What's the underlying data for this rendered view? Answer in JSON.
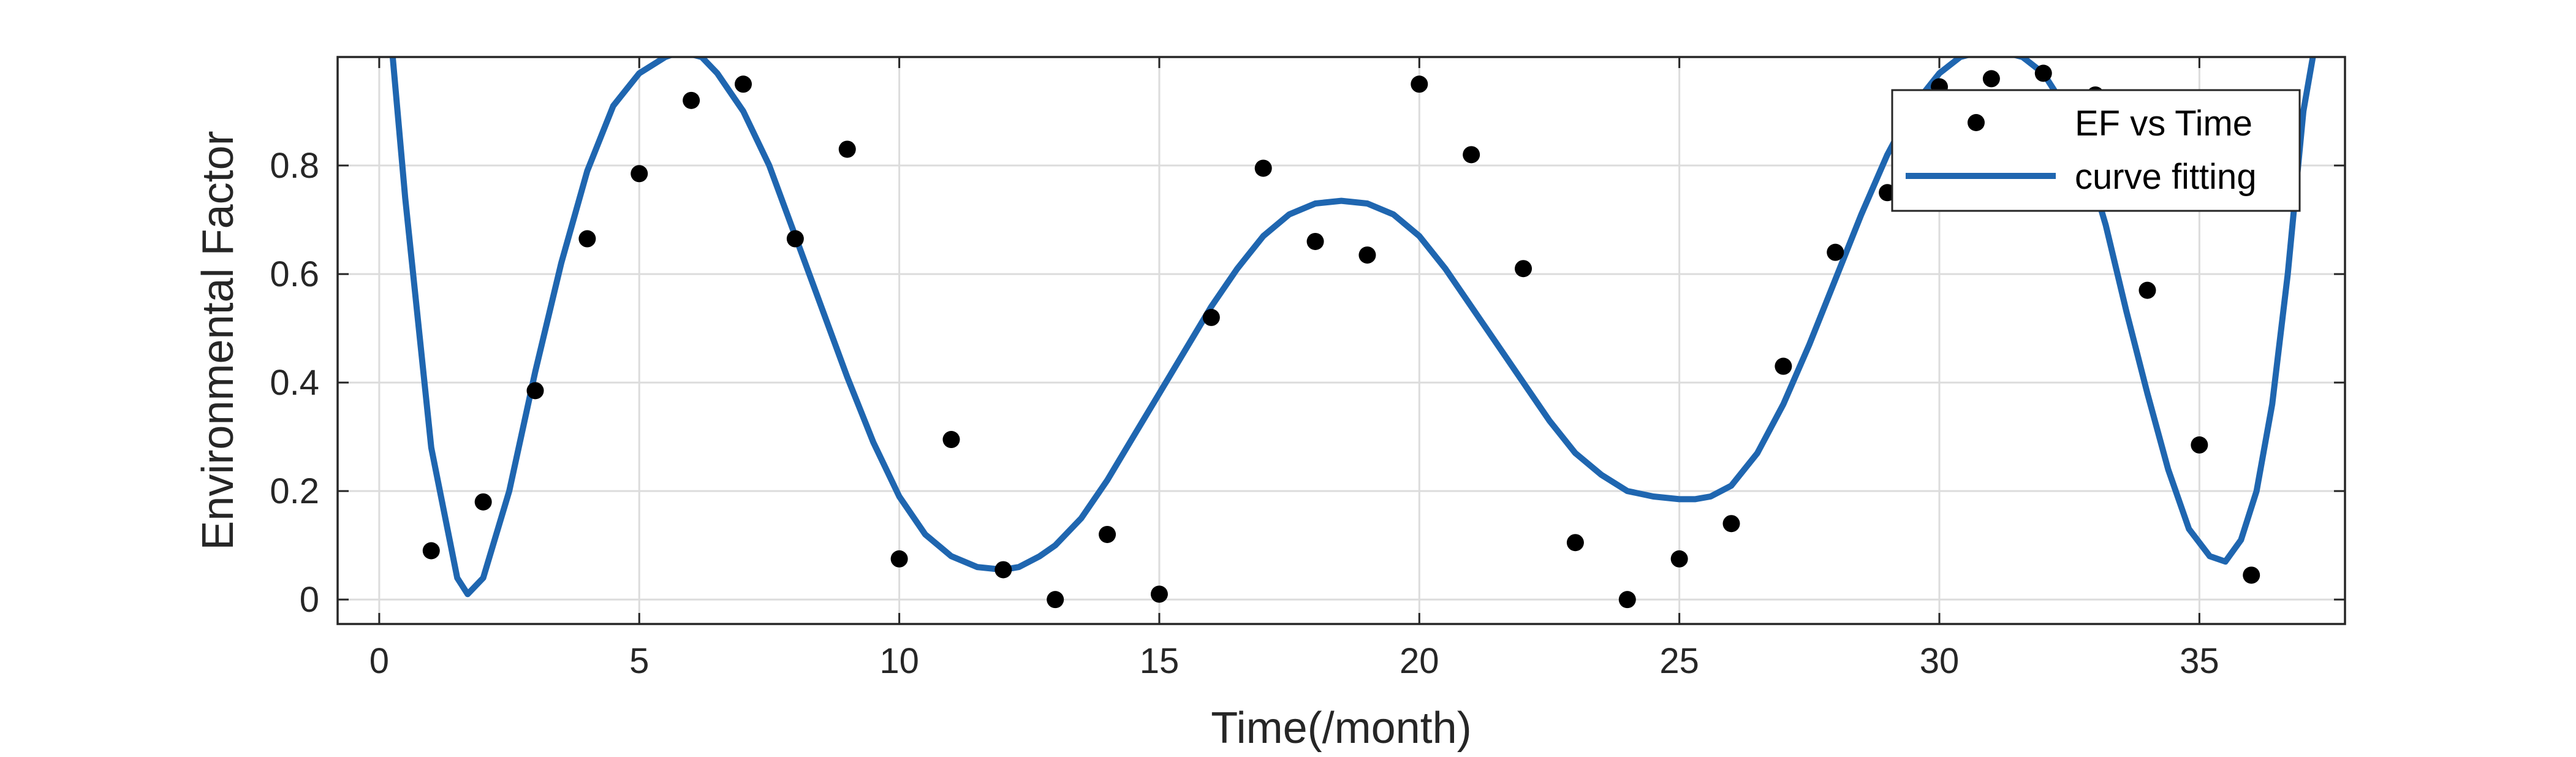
{
  "chart_data": {
    "type": "scatter",
    "xlabel": "Time(/month)",
    "ylabel": "Environmental Factor",
    "xlim": [
      -0.8,
      37.8
    ],
    "ylim": [
      -0.045,
      1.0
    ],
    "xticks": [
      0,
      5,
      10,
      15,
      20,
      25,
      30,
      35
    ],
    "yticks": [
      0,
      0.2,
      0.4,
      0.6,
      0.8
    ],
    "xtick_labels": [
      "0",
      "5",
      "10",
      "15",
      "20",
      "25",
      "30",
      "35"
    ],
    "ytick_labels": [
      "0",
      "0.2",
      "0.4",
      "0.6",
      "0.8"
    ],
    "grid": true,
    "legend_position": "top-right",
    "colors": {
      "points": "#000000",
      "curve": "#1f66b0",
      "axes": "#262626",
      "grid": "#dcdcdc"
    },
    "series": [
      {
        "name": "EF vs Time",
        "kind": "scatter",
        "x": [
          1,
          2,
          3,
          4,
          5,
          6,
          7,
          8,
          9,
          10,
          11,
          12,
          13,
          14,
          15,
          16,
          17,
          18,
          19,
          20,
          21,
          22,
          23,
          24,
          25,
          26,
          27,
          28,
          29,
          30,
          31,
          32,
          33,
          34,
          35,
          36
        ],
        "y": [
          0.09,
          0.18,
          0.385,
          0.665,
          0.785,
          0.92,
          0.95,
          0.665,
          0.83,
          0.075,
          0.295,
          0.055,
          0.0,
          0.12,
          0.01,
          0.52,
          0.795,
          0.66,
          0.635,
          0.95,
          0.82,
          0.61,
          0.105,
          0.0,
          0.075,
          0.14,
          0.43,
          0.64,
          0.75,
          0.945,
          0.96,
          0.97,
          0.93,
          0.57,
          0.285,
          0.045
        ]
      },
      {
        "name": "curve fitting",
        "kind": "line",
        "x": [
          0.25,
          0.5,
          1.0,
          1.5,
          1.7,
          2.0,
          2.5,
          3.0,
          3.5,
          4.0,
          4.5,
          5.0,
          5.5,
          5.8,
          6.2,
          6.5,
          7.0,
          7.5,
          8.0,
          8.5,
          9.0,
          9.5,
          10.0,
          10.5,
          11.0,
          11.5,
          12.0,
          12.3,
          12.7,
          13.0,
          13.5,
          14.0,
          14.5,
          15.0,
          15.5,
          16.0,
          16.5,
          17.0,
          17.5,
          18.0,
          18.5,
          19.0,
          19.5,
          20.0,
          20.5,
          21.0,
          21.5,
          22.0,
          22.5,
          23.0,
          23.5,
          24.0,
          24.5,
          25.0,
          25.3,
          25.6,
          26.0,
          26.5,
          27.0,
          27.5,
          28.0,
          28.5,
          29.0,
          29.5,
          30.0,
          30.4,
          30.8,
          31.2,
          31.6,
          32.0,
          32.4,
          32.8,
          33.2,
          33.6,
          34.0,
          34.4,
          34.8,
          35.2,
          35.5,
          35.8,
          36.1,
          36.4,
          36.7,
          37.0,
          37.2
        ],
        "y": [
          1.01,
          0.74,
          0.28,
          0.04,
          0.01,
          0.04,
          0.2,
          0.42,
          0.62,
          0.79,
          0.91,
          0.97,
          1.0,
          1.01,
          1.0,
          0.97,
          0.9,
          0.8,
          0.67,
          0.54,
          0.41,
          0.29,
          0.19,
          0.12,
          0.08,
          0.06,
          0.055,
          0.06,
          0.08,
          0.1,
          0.15,
          0.22,
          0.3,
          0.38,
          0.46,
          0.54,
          0.61,
          0.67,
          0.71,
          0.73,
          0.735,
          0.73,
          0.71,
          0.67,
          0.61,
          0.54,
          0.47,
          0.4,
          0.33,
          0.27,
          0.23,
          0.2,
          0.19,
          0.185,
          0.185,
          0.19,
          0.21,
          0.27,
          0.36,
          0.47,
          0.59,
          0.71,
          0.82,
          0.91,
          0.97,
          1.0,
          1.01,
          1.01,
          1.0,
          0.97,
          0.91,
          0.82,
          0.69,
          0.53,
          0.38,
          0.24,
          0.13,
          0.08,
          0.07,
          0.11,
          0.2,
          0.36,
          0.6,
          0.9,
          1.01
        ]
      }
    ]
  }
}
